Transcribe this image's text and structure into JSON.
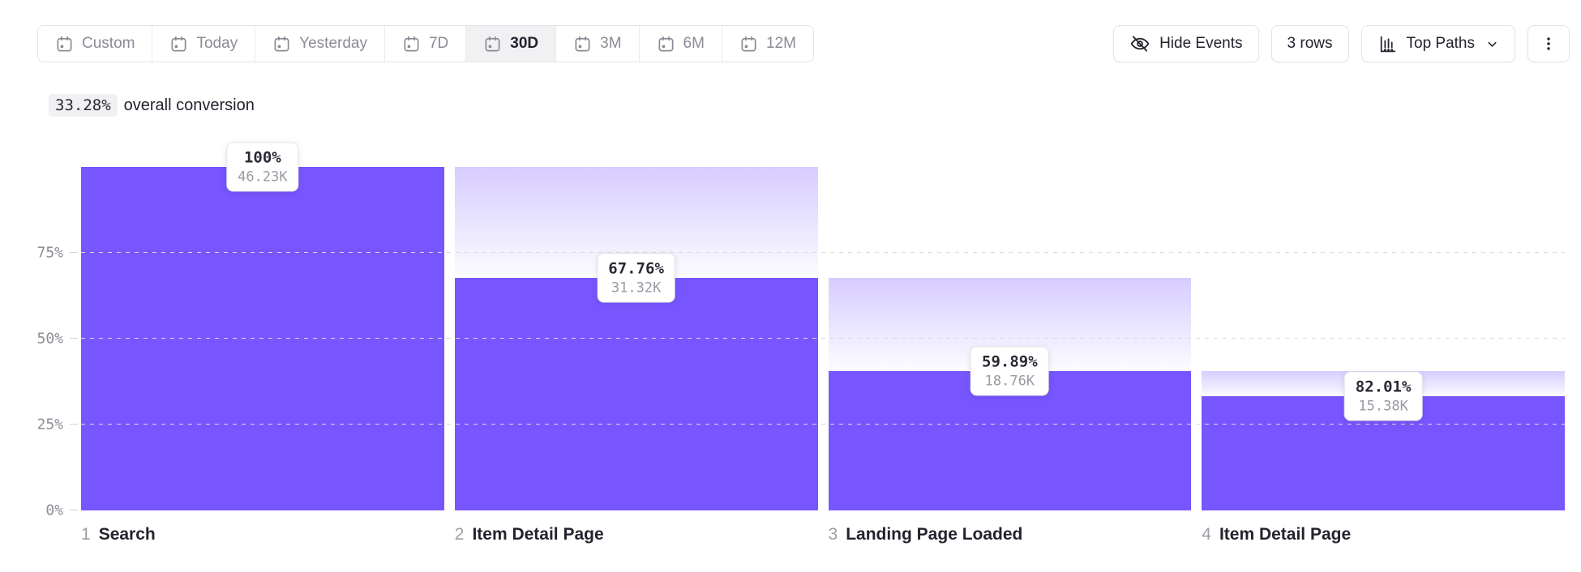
{
  "toolbar": {
    "date_ranges": [
      {
        "label": "Custom",
        "icon": "calendar-icon",
        "selected": false
      },
      {
        "label": "Today",
        "selected": false
      },
      {
        "label": "Yesterday",
        "selected": false
      },
      {
        "label": "7D",
        "selected": false
      },
      {
        "label": "30D",
        "selected": true
      },
      {
        "label": "3M",
        "selected": false
      },
      {
        "label": "6M",
        "selected": false
      },
      {
        "label": "12M",
        "selected": false
      }
    ],
    "hide_events_label": "Hide Events",
    "rows_label": "3 rows",
    "view_mode_label": "Top Paths"
  },
  "summary": {
    "percent": "33.28%",
    "text": "overall conversion"
  },
  "chart_data": {
    "type": "bar",
    "subtype": "funnel",
    "title": "33.28% overall conversion",
    "ylabel": "",
    "xlabel": "",
    "ylim": [
      0,
      100
    ],
    "yticks": [
      {
        "label": "75%",
        "value": 75
      },
      {
        "label": "50%",
        "value": 50
      },
      {
        "label": "25%",
        "value": 25
      },
      {
        "label": "0%",
        "value": 0
      }
    ],
    "grid": "dashed-horizontal",
    "steps": [
      {
        "index": "1",
        "name": "Search",
        "conversion": "100%",
        "count": "46.23K",
        "bar_pct": 100,
        "prev_pct": 100
      },
      {
        "index": "2",
        "name": "Item Detail Page",
        "conversion": "67.76%",
        "count": "31.32K",
        "bar_pct": 67.75,
        "prev_pct": 100
      },
      {
        "index": "3",
        "name": "Landing Page Loaded",
        "conversion": "59.89%",
        "count": "18.76K",
        "bar_pct": 40.58,
        "prev_pct": 67.75
      },
      {
        "index": "4",
        "name": "Item Detail Page",
        "conversion": "82.01%",
        "count": "15.38K",
        "bar_pct": 33.27,
        "prev_pct": 40.58
      }
    ],
    "colors": {
      "bar": "#7856ff",
      "dropoff_gradient_top": "rgba(120,86,255,0.30)",
      "dropoff_gradient_bottom": "rgba(120,86,255,0.02)"
    }
  }
}
